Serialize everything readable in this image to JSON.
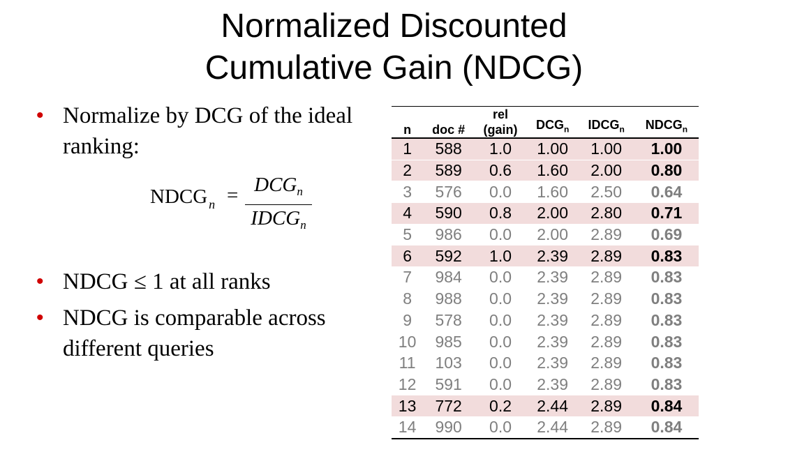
{
  "title": {
    "line1": "Normalized Discounted",
    "line2": "Cumulative Gain (NDCG)"
  },
  "bullets": {
    "b1": "Normalize by DCG of the ideal ranking:",
    "b2": "NDCG ≤ 1 at all ranks",
    "b3": "NDCG is comparable across different queries"
  },
  "formula": {
    "lhs": "NDCG",
    "lhs_sub": "n",
    "eq": "=",
    "numerator": "DCG",
    "numerator_sub": "n",
    "denominator": "IDCG",
    "denominator_sub": "n"
  },
  "table": {
    "headers": {
      "n": "n",
      "doc": "doc #",
      "rel_top": "rel",
      "rel_bottom": "(gain)",
      "dcg": "DCG",
      "dcg_sub": "n",
      "idcg": "IDCG",
      "idcg_sub": "n",
      "ndcg": "NDCG",
      "ndcg_sub": "n"
    },
    "rows": [
      {
        "n": "1",
        "doc": "588",
        "rel": "1.0",
        "dcg": "1.00",
        "idcg": "1.00",
        "ndcg": "1.00",
        "relevant": true
      },
      {
        "n": "2",
        "doc": "589",
        "rel": "0.6",
        "dcg": "1.60",
        "idcg": "2.00",
        "ndcg": "0.80",
        "relevant": true
      },
      {
        "n": "3",
        "doc": "576",
        "rel": "0.0",
        "dcg": "1.60",
        "idcg": "2.50",
        "ndcg": "0.64",
        "relevant": false
      },
      {
        "n": "4",
        "doc": "590",
        "rel": "0.8",
        "dcg": "2.00",
        "idcg": "2.80",
        "ndcg": "0.71",
        "relevant": true
      },
      {
        "n": "5",
        "doc": "986",
        "rel": "0.0",
        "dcg": "2.00",
        "idcg": "2.89",
        "ndcg": "0.69",
        "relevant": false
      },
      {
        "n": "6",
        "doc": "592",
        "rel": "1.0",
        "dcg": "2.39",
        "idcg": "2.89",
        "ndcg": "0.83",
        "relevant": true
      },
      {
        "n": "7",
        "doc": "984",
        "rel": "0.0",
        "dcg": "2.39",
        "idcg": "2.89",
        "ndcg": "0.83",
        "relevant": false
      },
      {
        "n": "8",
        "doc": "988",
        "rel": "0.0",
        "dcg": "2.39",
        "idcg": "2.89",
        "ndcg": "0.83",
        "relevant": false
      },
      {
        "n": "9",
        "doc": "578",
        "rel": "0.0",
        "dcg": "2.39",
        "idcg": "2.89",
        "ndcg": "0.83",
        "relevant": false
      },
      {
        "n": "10",
        "doc": "985",
        "rel": "0.0",
        "dcg": "2.39",
        "idcg": "2.89",
        "ndcg": "0.83",
        "relevant": false
      },
      {
        "n": "11",
        "doc": "103",
        "rel": "0.0",
        "dcg": "2.39",
        "idcg": "2.89",
        "ndcg": "0.83",
        "relevant": false
      },
      {
        "n": "12",
        "doc": "591",
        "rel": "0.0",
        "dcg": "2.39",
        "idcg": "2.89",
        "ndcg": "0.83",
        "relevant": false
      },
      {
        "n": "13",
        "doc": "772",
        "rel": "0.2",
        "dcg": "2.44",
        "idcg": "2.89",
        "ndcg": "0.84",
        "relevant": true
      },
      {
        "n": "14",
        "doc": "990",
        "rel": "0.0",
        "dcg": "2.44",
        "idcg": "2.89",
        "ndcg": "0.84",
        "relevant": false
      }
    ]
  },
  "colors": {
    "bullet": "#d00000",
    "relevant_row": "#f2dcdc",
    "nonrelevant_text": "#7f7f7f"
  }
}
